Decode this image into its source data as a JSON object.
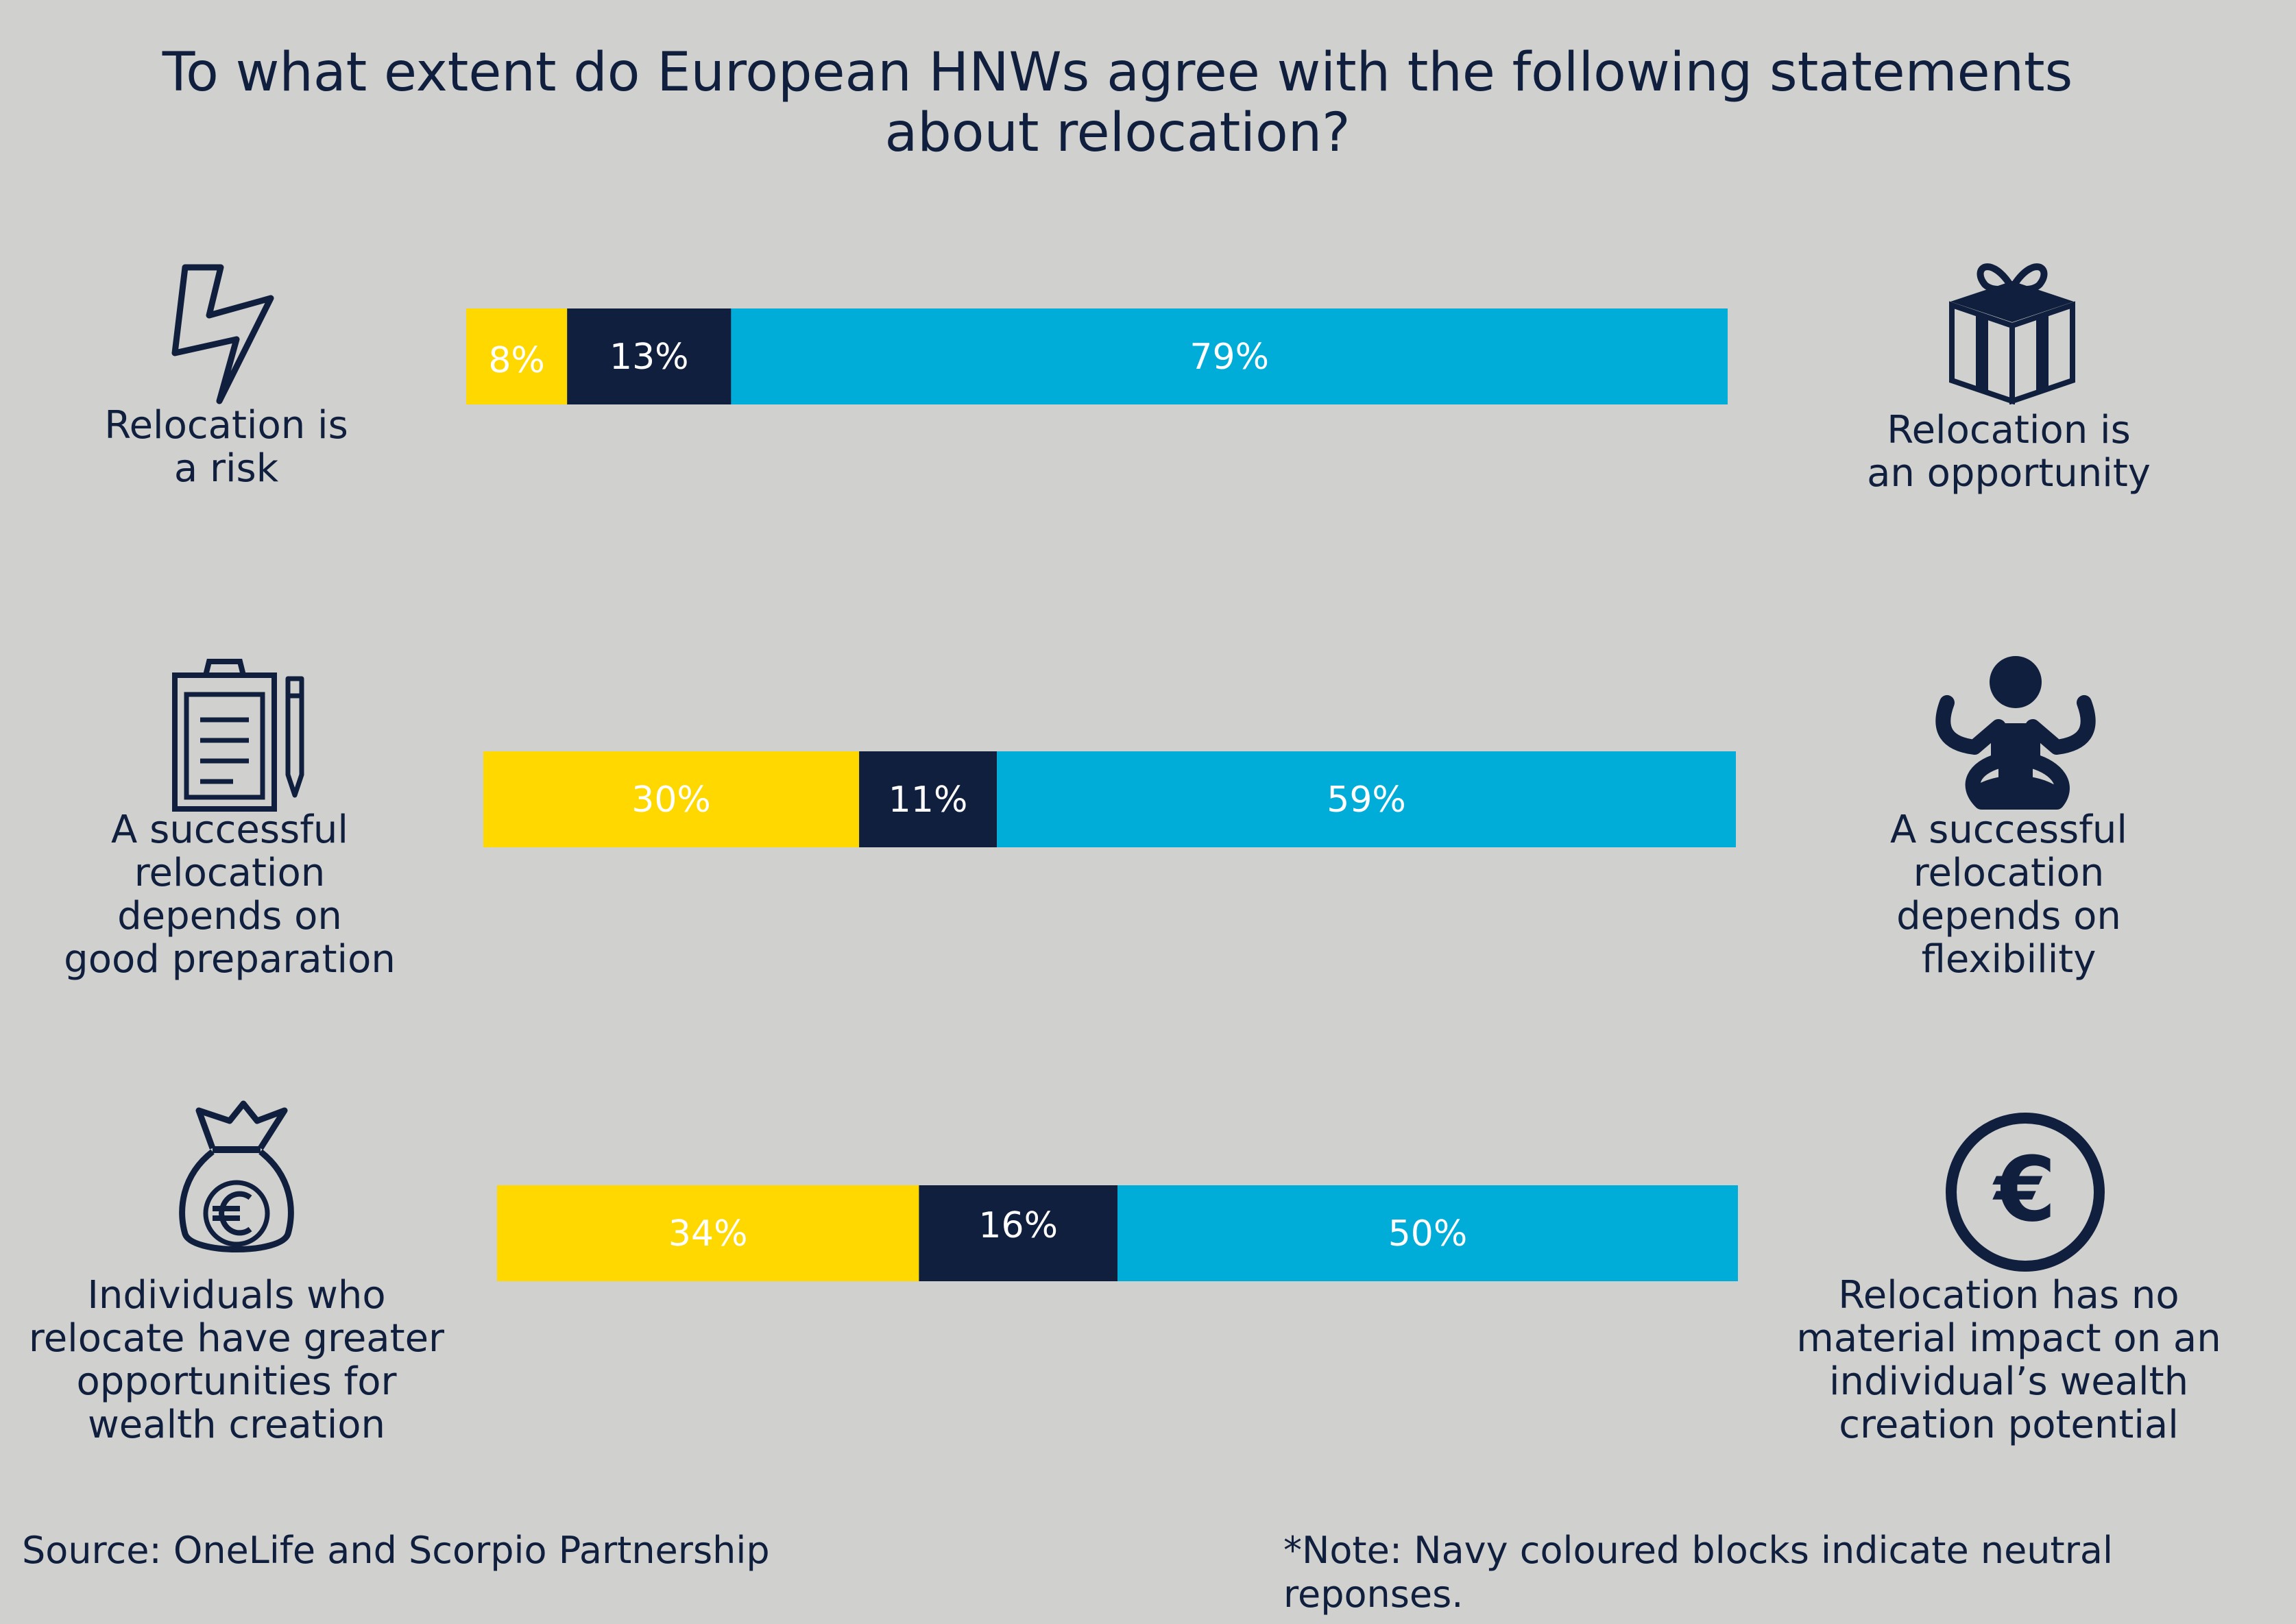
{
  "title": "To what extent do European HNWs agree with the following statements about relocation?",
  "colors": {
    "agree_left": "#ffd800",
    "neutral": "#0f1f3d",
    "agree_right": "#00acd8",
    "background": "#d0d0ce"
  },
  "rows": [
    {
      "left_label": "Relocation is\na risk",
      "right_label": "Relocation is\nan opportunity",
      "left_icon": "lightning-bolt-icon",
      "right_icon": "gift-box-icon"
    },
    {
      "left_label": "A successful\nrelocation\ndepends on\ngood preparation",
      "right_label": "A successful\nrelocation\ndepends on\nflexibility",
      "left_icon": "clipboard-pencil-icon",
      "right_icon": "meditation-person-icon"
    },
    {
      "left_label": "Individuals who\nrelocate have greater\nopportunities for\nwealth creation",
      "right_label": "Relocation has no\nmaterial impact on an\nindividual’s wealth\ncreation potential",
      "left_icon": "money-bag-euro-icon",
      "right_icon": "euro-coin-icon"
    }
  ],
  "chart_data": {
    "type": "bar",
    "orientation": "horizontal",
    "stacked": true,
    "categories": [
      "Relocation is a risk / Relocation is an opportunity",
      "A successful relocation depends on good preparation / A successful relocation depends on flexibility",
      "Individuals who relocate have greater opportunities for wealth creation / Relocation has no material impact on an individual’s wealth creation potential"
    ],
    "series": [
      {
        "values": [
          8,
          30,
          34
        ],
        "labels": [
          "8%",
          "30%",
          "34%"
        ],
        "color": "#ffd800"
      },
      {
        "values": [
          13,
          11,
          16
        ],
        "labels": [
          "13%",
          "11%",
          "16%"
        ],
        "color": "#0f1f3d"
      },
      {
        "values": [
          79,
          59,
          50
        ],
        "labels": [
          "79%",
          "59%",
          "50%"
        ],
        "color": "#00acd8"
      }
    ]
  },
  "footer": {
    "source": "Source: OneLife and Scorpio Partnership",
    "note": "*Note: Navy coloured blocks indicate neutral reponses."
  }
}
